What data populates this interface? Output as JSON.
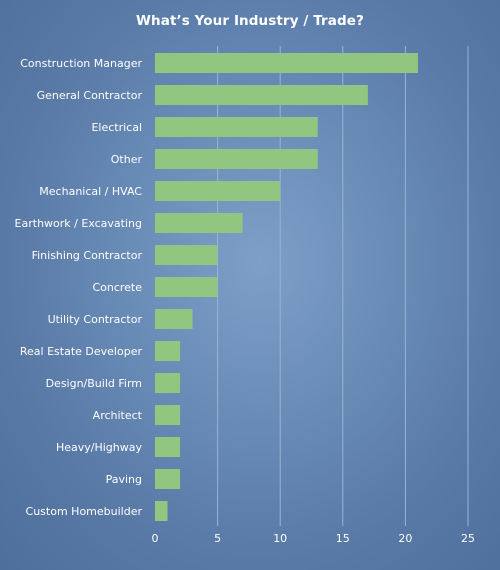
{
  "chart_data": {
    "type": "bar",
    "orientation": "horizontal",
    "title": "What’s Your Industry / Trade?",
    "xlabel": "",
    "ylabel": "",
    "categories": [
      "Construction Manager",
      "General Contractor",
      "Electrical",
      "Other",
      "Mechanical / HVAC",
      "Earthwork / Excavating",
      "Finishing Contractor",
      "Concrete",
      "Utility Contractor",
      "Real Estate Developer",
      "Design/Build Firm",
      "Architect",
      "Heavy/Highway",
      "Paving",
      "Custom Homebuilder"
    ],
    "values": [
      21,
      17,
      13,
      13,
      10,
      7,
      5,
      5,
      3,
      2,
      2,
      2,
      2,
      2,
      1
    ],
    "xlim": [
      0,
      25
    ],
    "xticks": [
      0,
      5,
      10,
      15,
      20,
      25
    ],
    "grid": "vertical",
    "legend": "none",
    "colors": {
      "bar": "#90c680",
      "gridline": "#9ab3d3",
      "text": "#ffffff"
    }
  }
}
